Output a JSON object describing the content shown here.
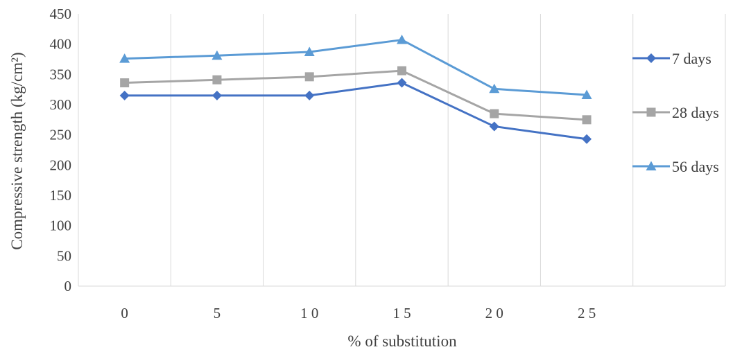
{
  "chart_data": {
    "type": "line",
    "title": "",
    "xlabel": "% of substitution",
    "ylabel": "Compressive strength (kg/cm²)",
    "categories": [
      "0",
      "5",
      "10",
      "15",
      "20",
      "25"
    ],
    "x_tick_labels": [
      "0",
      "5",
      "1 0",
      "1 5",
      "2 0",
      "2 5"
    ],
    "ylim": [
      0,
      450
    ],
    "y_ticks": [
      0,
      50,
      100,
      150,
      200,
      250,
      300,
      350,
      400,
      450
    ],
    "y_tick_labels": [
      "0",
      "50",
      "100",
      "150",
      "200",
      "250",
      "300",
      "350",
      "400",
      "450"
    ],
    "grid": "vertical",
    "legend_position": "right",
    "series": [
      {
        "name": "7 days",
        "values": [
          315,
          315,
          315,
          336,
          264,
          243
        ],
        "color": "#4472C4",
        "marker": "diamond"
      },
      {
        "name": "28 days",
        "values": [
          336,
          341,
          346,
          356,
          285,
          275
        ],
        "color": "#A5A5A5",
        "marker": "square"
      },
      {
        "name": "56 days",
        "values": [
          376,
          381,
          387,
          407,
          326,
          316
        ],
        "color": "#5B9BD5",
        "marker": "triangle"
      }
    ]
  }
}
